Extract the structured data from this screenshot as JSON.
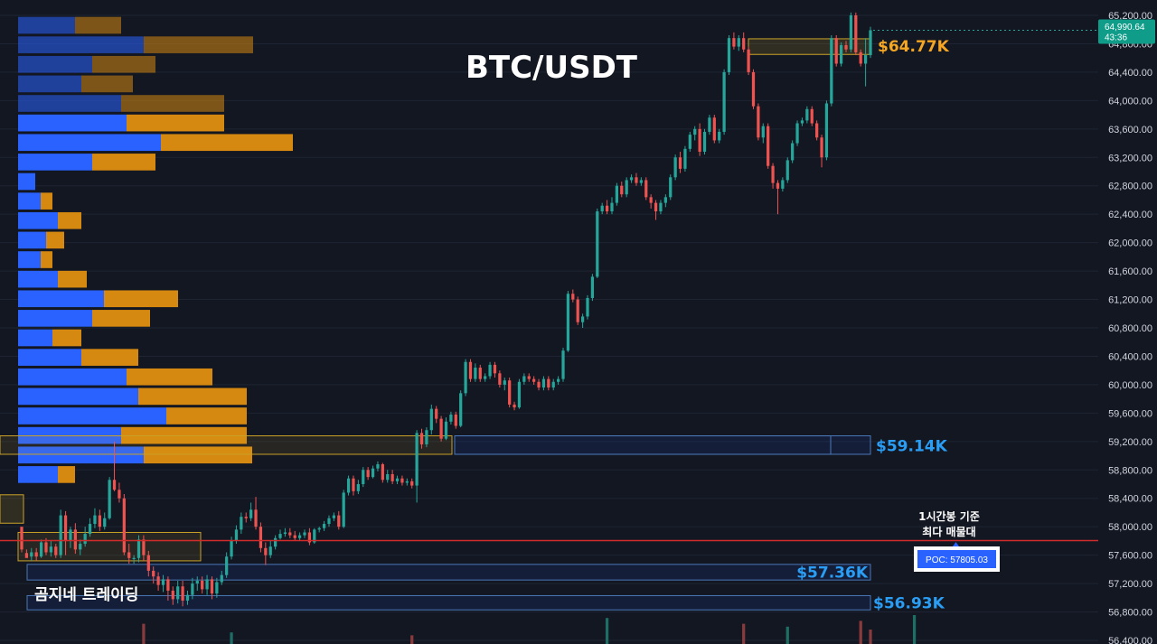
{
  "chart_data": {
    "type": "candlestick",
    "title": "BTC/USDT",
    "ylim": [
      56400,
      65200
    ],
    "y_ticks": [
      "65,200.00",
      "64,800.00",
      "64,400.00",
      "64,000.00",
      "63,600.00",
      "63,200.00",
      "62,800.00",
      "62,400.00",
      "62,000.00",
      "61,600.00",
      "61,200.00",
      "60,800.00",
      "60,400.00",
      "60,000.00",
      "59,600.00",
      "59,200.00",
      "58,800.00",
      "58,400.00",
      "58,000.00",
      "57,600.00",
      "57,200.00",
      "56,800.00",
      "56,400.00"
    ],
    "current_price": {
      "value": "64,990.64",
      "countdown": "43:36",
      "price": 64990.64
    },
    "levels": [
      {
        "label": "$64.77K",
        "price": 64770,
        "color": "#f5a623"
      },
      {
        "label": "$59.14K",
        "price": 59140,
        "color": "#2a9df4"
      },
      {
        "label": "$57.36K",
        "price": 57360,
        "color": "#2a9df4"
      },
      {
        "label": "$56.93K",
        "price": 56930,
        "color": "#2a9df4"
      }
    ],
    "poc": {
      "label": "POC: 57805.03",
      "price": 57805.03
    },
    "poc_note": [
      "1시간봉 기준",
      "최다 매물대"
    ],
    "watermark": "곰지네 트레이딩",
    "volume_profile": {
      "price_step": 275,
      "rows": [
        {
          "price": 65060,
          "buy": 63,
          "sell": 51
        },
        {
          "price": 64785,
          "buy": 139,
          "sell": 121
        },
        {
          "price": 64510,
          "buy": 82,
          "sell": 70
        },
        {
          "price": 64235,
          "buy": 70,
          "sell": 57
        },
        {
          "price": 63960,
          "buy": 114,
          "sell": 114
        },
        {
          "price": 63685,
          "buy": 120,
          "sell": 108
        },
        {
          "price": 63410,
          "buy": 158,
          "sell": 146
        },
        {
          "price": 63135,
          "buy": 82,
          "sell": 70
        },
        {
          "price": 62860,
          "buy": 19,
          "sell": 0
        },
        {
          "price": 62585,
          "buy": 25,
          "sell": 13
        },
        {
          "price": 62310,
          "buy": 44,
          "sell": 26
        },
        {
          "price": 62035,
          "buy": 31,
          "sell": 20
        },
        {
          "price": 61760,
          "buy": 25,
          "sell": 13
        },
        {
          "price": 61485,
          "buy": 44,
          "sell": 32
        },
        {
          "price": 61210,
          "buy": 95,
          "sell": 82
        },
        {
          "price": 60935,
          "buy": 82,
          "sell": 64
        },
        {
          "price": 60660,
          "buy": 38,
          "sell": 32
        },
        {
          "price": 60385,
          "buy": 70,
          "sell": 63
        },
        {
          "price": 60110,
          "buy": 120,
          "sell": 95
        },
        {
          "price": 59835,
          "buy": 133,
          "sell": 120
        },
        {
          "price": 59560,
          "buy": 164,
          "sell": 89
        },
        {
          "price": 59285,
          "buy": 114,
          "sell": 139
        },
        {
          "price": 59010,
          "buy": 139,
          "sell": 120
        },
        {
          "price": 58735,
          "buy": 44,
          "sell": 19
        }
      ],
      "buy_color": "#2962ff",
      "sell_color": "#d68910"
    },
    "candles": [
      [
        58000,
        57680,
        57900,
        57640
      ],
      [
        57630,
        57560,
        57680,
        57580
      ],
      [
        57580,
        57640,
        57700,
        57520
      ],
      [
        57640,
        57580,
        57700,
        57520
      ],
      [
        57580,
        57780,
        57820,
        57560
      ],
      [
        57780,
        57640,
        57840,
        57600
      ],
      [
        57640,
        57720,
        57800,
        57580
      ],
      [
        57720,
        57600,
        57760,
        57560
      ],
      [
        57600,
        58160,
        58240,
        57560
      ],
      [
        58160,
        57800,
        58220,
        57600
      ],
      [
        57800,
        57960,
        58000,
        57700
      ],
      [
        57960,
        57680,
        58050,
        57620
      ],
      [
        57680,
        57760,
        57820,
        57600
      ],
      [
        57760,
        57900,
        58000,
        57720
      ],
      [
        57900,
        58040,
        58120,
        57860
      ],
      [
        58040,
        58160,
        58260,
        57980
      ],
      [
        58160,
        58000,
        58240,
        57940
      ],
      [
        58000,
        58120,
        58200,
        57960
      ],
      [
        58120,
        58660,
        58700,
        58100
      ],
      [
        58660,
        58520,
        59200,
        58500
      ],
      [
        58520,
        58400,
        58620,
        58340
      ],
      [
        58400,
        57640,
        58460,
        57600
      ],
      [
        57640,
        57560,
        57760,
        57480
      ],
      [
        57560,
        57560,
        57600,
        57480
      ],
      [
        57560,
        57820,
        57880,
        57500
      ],
      [
        57820,
        57600,
        57880,
        57520
      ],
      [
        57600,
        57380,
        57660,
        57300
      ],
      [
        57380,
        57300,
        57440,
        57200
      ],
      [
        57300,
        57180,
        57360,
        57100
      ],
      [
        57180,
        57260,
        57320,
        57080
      ],
      [
        57260,
        57100,
        57300,
        56960
      ],
      [
        57100,
        56980,
        57160,
        56900
      ],
      [
        56980,
        57160,
        57240,
        56920
      ],
      [
        57160,
        56960,
        57240,
        56880
      ],
      [
        56960,
        57040,
        57100,
        56900
      ],
      [
        57040,
        57200,
        57280,
        56980
      ],
      [
        57200,
        57240,
        57300,
        57100
      ],
      [
        57240,
        57120,
        57300,
        57060
      ],
      [
        57120,
        57260,
        57320,
        57040
      ],
      [
        57260,
        57060,
        57300,
        56980
      ],
      [
        57060,
        57220,
        57280,
        57000
      ],
      [
        57220,
        57320,
        57380,
        57180
      ],
      [
        57320,
        57580,
        57640,
        57280
      ],
      [
        57580,
        57800,
        57860,
        57540
      ],
      [
        57800,
        57960,
        58020,
        57760
      ],
      [
        57960,
        58140,
        58200,
        57900
      ],
      [
        58140,
        58120,
        58200,
        58060
      ],
      [
        58120,
        58240,
        58340,
        58080
      ],
      [
        58240,
        58000,
        58420,
        57960
      ],
      [
        58000,
        57700,
        58060,
        57640
      ],
      [
        57700,
        57600,
        57780,
        57460
      ],
      [
        57600,
        57720,
        57800,
        57560
      ],
      [
        57720,
        57840,
        57880,
        57680
      ],
      [
        57840,
        57900,
        57960,
        57820
      ],
      [
        57900,
        57920,
        57980,
        57860
      ],
      [
        57920,
        57880,
        57980,
        57840
      ],
      [
        57880,
        57840,
        57940,
        57800
      ],
      [
        57840,
        57880,
        57920,
        57800
      ],
      [
        57880,
        57920,
        57960,
        57840
      ],
      [
        57920,
        57780,
        57980,
        57740
      ],
      [
        57780,
        57960,
        57980,
        57760
      ],
      [
        57960,
        57980,
        58000,
        57920
      ],
      [
        57980,
        58040,
        58080,
        57940
      ],
      [
        58040,
        58120,
        58160,
        58000
      ],
      [
        58120,
        58160,
        58200,
        58080
      ],
      [
        58160,
        58000,
        58220,
        57960
      ],
      [
        58000,
        58480,
        58520,
        57980
      ],
      [
        58480,
        58680,
        58720,
        58440
      ],
      [
        58680,
        58500,
        58720,
        58440
      ],
      [
        58500,
        58600,
        58660,
        58460
      ],
      [
        58600,
        58800,
        58840,
        58560
      ],
      [
        58800,
        58700,
        58840,
        58660
      ],
      [
        58700,
        58820,
        58860,
        58680
      ],
      [
        58820,
        58880,
        58920,
        58780
      ],
      [
        58880,
        58660,
        58900,
        58620
      ],
      [
        58660,
        58740,
        58800,
        58620
      ],
      [
        58740,
        58640,
        58800,
        58600
      ],
      [
        58640,
        58680,
        58720,
        58600
      ],
      [
        58680,
        58620,
        58720,
        58580
      ],
      [
        58620,
        58640,
        58680,
        58580
      ],
      [
        58640,
        58580,
        58680,
        58540
      ],
      [
        58580,
        59320,
        59360,
        58340
      ],
      [
        59320,
        59160,
        59380,
        59100
      ],
      [
        59160,
        59360,
        59400,
        59120
      ],
      [
        59360,
        59660,
        59720,
        59300
      ],
      [
        59660,
        59520,
        59700,
        59460
      ],
      [
        59520,
        59240,
        59560,
        59200
      ],
      [
        59240,
        59480,
        59540,
        59220
      ],
      [
        59480,
        59580,
        59620,
        59440
      ],
      [
        59580,
        59420,
        59620,
        59380
      ],
      [
        59420,
        59880,
        59920,
        59400
      ],
      [
        59880,
        60320,
        60360,
        59840
      ],
      [
        60320,
        60080,
        60360,
        60040
      ],
      [
        60080,
        60240,
        60300,
        60040
      ],
      [
        60240,
        60080,
        60280,
        60040
      ],
      [
        60080,
        60120,
        60160,
        60040
      ],
      [
        60120,
        60280,
        60320,
        60080
      ],
      [
        60280,
        60160,
        60320,
        60100
      ],
      [
        60160,
        60000,
        60200,
        59960
      ],
      [
        60000,
        60060,
        60100,
        59920
      ],
      [
        60060,
        59720,
        60100,
        59680
      ],
      [
        59720,
        59680,
        59760,
        59640
      ],
      [
        59680,
        60040,
        60080,
        59660
      ],
      [
        60040,
        60120,
        60160,
        60000
      ],
      [
        60120,
        60080,
        60160,
        60040
      ],
      [
        60080,
        60040,
        60120,
        60000
      ],
      [
        60040,
        59960,
        60080,
        59920
      ],
      [
        59960,
        60080,
        60120,
        59920
      ],
      [
        60080,
        59960,
        60120,
        59920
      ],
      [
        59960,
        60040,
        60080,
        59920
      ],
      [
        60040,
        60080,
        60120,
        60000
      ],
      [
        60080,
        60480,
        60520,
        60040
      ],
      [
        60480,
        61280,
        61320,
        60460
      ],
      [
        61280,
        61200,
        61340,
        61160
      ],
      [
        61200,
        60880,
        61240,
        60840
      ],
      [
        60880,
        60960,
        61000,
        60800
      ],
      [
        60960,
        61220,
        61260,
        60920
      ],
      [
        61220,
        61520,
        61560,
        61180
      ],
      [
        61520,
        62440,
        62480,
        61500
      ],
      [
        62440,
        62520,
        62560,
        62400
      ],
      [
        62520,
        62440,
        62600,
        62400
      ],
      [
        62440,
        62560,
        62640,
        62400
      ],
      [
        62560,
        62800,
        62840,
        62520
      ],
      [
        62800,
        62680,
        62860,
        62640
      ],
      [
        62680,
        62880,
        62920,
        62640
      ],
      [
        62880,
        62920,
        62960,
        62840
      ],
      [
        62920,
        62840,
        62980,
        62800
      ],
      [
        62840,
        62880,
        62920,
        62800
      ],
      [
        62880,
        62640,
        62920,
        62600
      ],
      [
        62640,
        62560,
        62680,
        62480
      ],
      [
        62560,
        62440,
        62600,
        62320
      ],
      [
        62440,
        62560,
        62600,
        62400
      ],
      [
        62560,
        62640,
        62680,
        62500
      ],
      [
        62640,
        62920,
        62960,
        62600
      ],
      [
        62920,
        63200,
        63240,
        62880
      ],
      [
        63200,
        63040,
        63280,
        62980
      ],
      [
        63040,
        63320,
        63360,
        63000
      ],
      [
        63320,
        63520,
        63560,
        63280
      ],
      [
        63520,
        63600,
        63640,
        63440
      ],
      [
        63600,
        63280,
        63680,
        63220
      ],
      [
        63280,
        63560,
        63600,
        63240
      ],
      [
        63560,
        63760,
        63800,
        63520
      ],
      [
        63760,
        63440,
        63800,
        63400
      ],
      [
        63440,
        63560,
        63600,
        63400
      ],
      [
        63560,
        64400,
        64440,
        63520
      ],
      [
        64400,
        64880,
        64920,
        64360
      ],
      [
        64880,
        64760,
        64960,
        64720
      ],
      [
        64760,
        64880,
        64920,
        64700
      ],
      [
        64880,
        64720,
        64960,
        64680
      ],
      [
        64720,
        64400,
        64760,
        64360
      ],
      [
        64400,
        63920,
        64440,
        63880
      ],
      [
        63920,
        63480,
        63960,
        63440
      ],
      [
        63480,
        63640,
        63680,
        63400
      ],
      [
        63640,
        63080,
        63680,
        63040
      ],
      [
        63080,
        62840,
        63120,
        62760
      ],
      [
        62840,
        62760,
        62880,
        62400
      ],
      [
        62760,
        62880,
        62920,
        62720
      ],
      [
        62880,
        63160,
        63200,
        62840
      ],
      [
        63160,
        63400,
        63440,
        63120
      ],
      [
        63400,
        63680,
        63720,
        63360
      ],
      [
        63680,
        63720,
        63760,
        63640
      ],
      [
        63720,
        63880,
        63920,
        63680
      ],
      [
        63880,
        63680,
        63920,
        63640
      ],
      [
        63680,
        63480,
        63720,
        63440
      ],
      [
        63480,
        63200,
        63520,
        63060
      ],
      [
        63200,
        63960,
        64000,
        63160
      ],
      [
        63960,
        64880,
        64920,
        63920
      ],
      [
        64880,
        64520,
        64920,
        64480
      ],
      [
        64520,
        64780,
        64820,
        64480
      ],
      [
        64780,
        64720,
        64840,
        64680
      ],
      [
        64720,
        65200,
        65240,
        64680
      ],
      [
        65200,
        64680,
        65240,
        64640
      ],
      [
        64680,
        64520,
        64720,
        64480
      ],
      [
        64520,
        64640,
        64880,
        64200
      ],
      [
        64640,
        64990,
        65040,
        64600
      ]
    ],
    "volume_bars": [
      {
        "index": 25,
        "v": 0.7,
        "up": false
      },
      {
        "index": 43,
        "v": 0.4,
        "up": true
      },
      {
        "index": 80,
        "v": 0.3,
        "up": false
      },
      {
        "index": 120,
        "v": 0.9,
        "up": true
      },
      {
        "index": 148,
        "v": 0.7,
        "up": false
      },
      {
        "index": 157,
        "v": 0.6,
        "up": true
      },
      {
        "index": 172,
        "v": 0.8,
        "up": false
      },
      {
        "index": 174,
        "v": 0.5,
        "up": false
      },
      {
        "index": 183,
        "v": 1.0,
        "up": true
      }
    ],
    "up_color": "#26a69a",
    "down_color": "#ef5350"
  }
}
